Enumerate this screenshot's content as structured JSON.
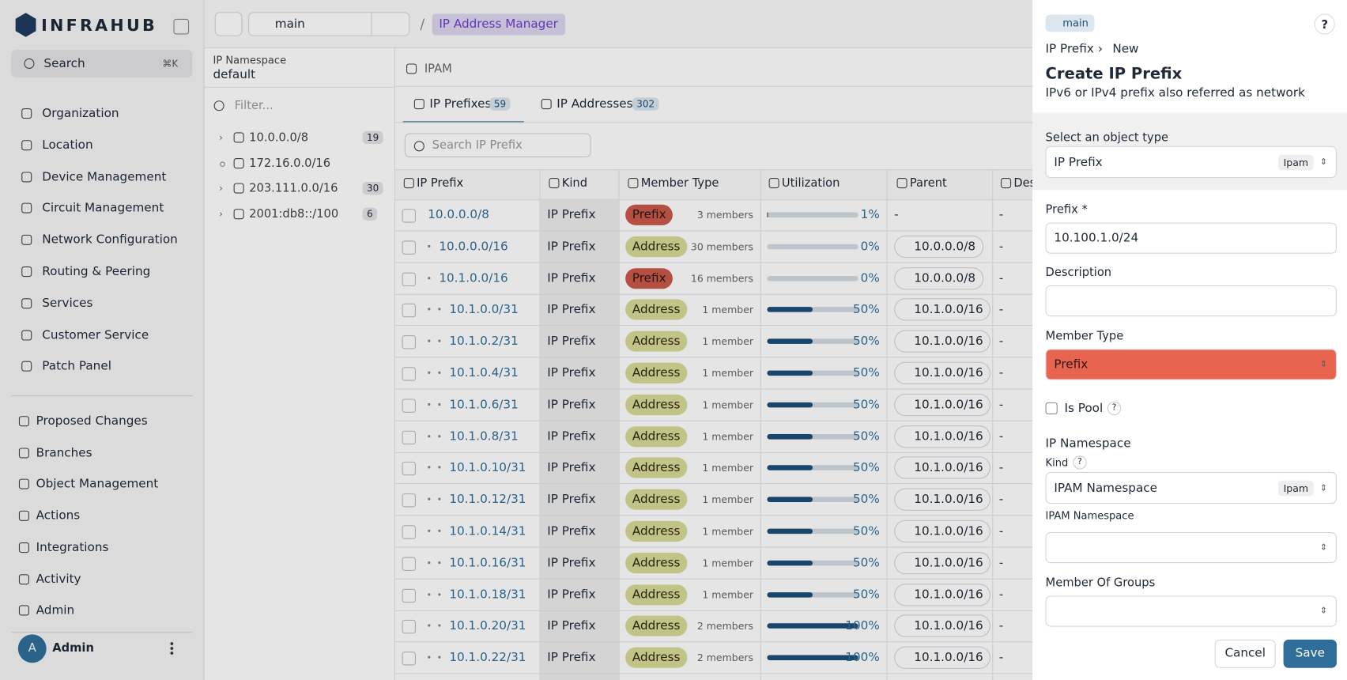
{
  "sidebar": {
    "brand": "INFRAHUB",
    "search": "Search",
    "shortcut": "⌘K",
    "nav": [
      "Organization",
      "Location",
      "Device Management",
      "Circuit Management",
      "Network Configuration",
      "Routing & Peering",
      "Services",
      "Customer Service",
      "Patch Panel"
    ],
    "nav2": [
      "Proposed Changes",
      "Branches",
      "Object Management",
      "Actions",
      "Integrations",
      "Activity",
      "Admin"
    ],
    "user_initial": "A",
    "user": "Admin"
  },
  "topbar": {
    "branch": "main",
    "breadcrumb": "IP Address Manager"
  },
  "namespace": {
    "label": "IP Namespace",
    "value": "default",
    "filter": "Filter...",
    "tree": [
      {
        "prefix": "10.0.0.0/8",
        "count": "19"
      },
      {
        "prefix": "172.16.0.0/16"
      },
      {
        "prefix": "203.111.0.0/16",
        "count": "30"
      },
      {
        "prefix": "2001:db8::/100",
        "count": "6"
      }
    ]
  },
  "main": {
    "crumb": "IPAM",
    "tabs": [
      {
        "label": "IP Prefixes",
        "count": "59"
      },
      {
        "label": "IP Addresses",
        "count": "302"
      }
    ],
    "search": "Search IP Prefix",
    "columns": [
      "IP Prefix",
      "Kind",
      "Member Type",
      "Utilization",
      "Parent",
      "Des"
    ],
    "rows": [
      [
        "10.0.0.0/8",
        "IP Prefix",
        "Prefix",
        "3 members",
        "1%",
        "-",
        "-"
      ],
      [
        "10.0.0.0/16",
        "IP Prefix",
        "Address",
        "30 members",
        "0%",
        "10.0.0.0/8",
        "-"
      ],
      [
        "10.1.0.0/16",
        "IP Prefix",
        "Prefix",
        "16 members",
        "0%",
        "10.0.0.0/8",
        "-"
      ],
      [
        "10.1.0.0/31",
        "IP Prefix",
        "Address",
        "1 member",
        "50%",
        "10.1.0.0/16",
        "-"
      ],
      [
        "10.1.0.2/31",
        "IP Prefix",
        "Address",
        "1 member",
        "50%",
        "10.1.0.0/16",
        "-"
      ],
      [
        "10.1.0.4/31",
        "IP Prefix",
        "Address",
        "1 member",
        "50%",
        "10.1.0.0/16",
        "-"
      ],
      [
        "10.1.0.6/31",
        "IP Prefix",
        "Address",
        "1 member",
        "50%",
        "10.1.0.0/16",
        "-"
      ],
      [
        "10.1.0.8/31",
        "IP Prefix",
        "Address",
        "1 member",
        "50%",
        "10.1.0.0/16",
        "-"
      ],
      [
        "10.1.0.10/31",
        "IP Prefix",
        "Address",
        "1 member",
        "50%",
        "10.1.0.0/16",
        "-"
      ],
      [
        "10.1.0.12/31",
        "IP Prefix",
        "Address",
        "1 member",
        "50%",
        "10.1.0.0/16",
        "-"
      ],
      [
        "10.1.0.14/31",
        "IP Prefix",
        "Address",
        "1 member",
        "50%",
        "10.1.0.0/16",
        "-"
      ],
      [
        "10.1.0.16/31",
        "IP Prefix",
        "Address",
        "1 member",
        "50%",
        "10.1.0.0/16",
        "-"
      ],
      [
        "10.1.0.18/31",
        "IP Prefix",
        "Address",
        "1 member",
        "50%",
        "10.1.0.0/16",
        "-"
      ],
      [
        "10.1.0.20/31",
        "IP Prefix",
        "Address",
        "2 members",
        "100%",
        "10.1.0.0/16",
        "-"
      ],
      [
        "10.1.0.22/31",
        "IP Prefix",
        "Address",
        "2 members",
        "100%",
        "10.1.0.0/16",
        "-"
      ]
    ]
  },
  "panel": {
    "branch": "main",
    "help": "?",
    "breadcrumb": [
      "IP Prefix",
      "New"
    ],
    "title": "Create IP Prefix",
    "subtitle": "IPv6 or IPv4 prefix also referred as network",
    "object_type": {
      "label": "Select an object type",
      "value": "IP Prefix",
      "badge": "Ipam"
    },
    "prefix": {
      "label": "Prefix *",
      "value": "10.100.1.0/24"
    },
    "description": {
      "label": "Description"
    },
    "member_type": {
      "label": "Member Type",
      "value": "Prefix"
    },
    "is_pool": {
      "label": "Is Pool",
      "help": "?"
    },
    "namespace": {
      "title": "IP Namespace",
      "kind_label": "Kind",
      "kind_help": "?",
      "kind_value": "IPAM Namespace",
      "kind_badge": "Ipam",
      "field_label": "IPAM Namespace"
    },
    "groups": {
      "label": "Member Of Groups"
    },
    "cancel": "Cancel",
    "save": "Save"
  }
}
